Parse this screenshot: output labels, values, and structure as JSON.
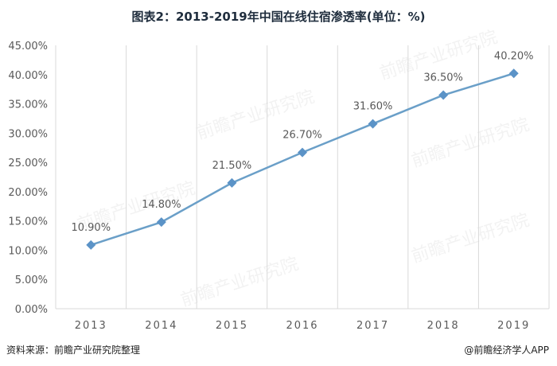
{
  "chart_title": "图表2：2013-2019年中国在线住宿渗透率(单位：%)",
  "footer": {
    "source": "资料来源：前瞻产业研究院整理",
    "brand": "@前瞻经济学人APP"
  },
  "watermark": {
    "text": "前瞻产业研究院"
  },
  "colors": {
    "line": "#6a9fc8",
    "marker": "#5b93c7",
    "grid": "#d9d9d9",
    "tick_text": "#595959",
    "label_text": "#595959"
  },
  "chart_data": {
    "type": "line",
    "title": "图表2：2013-2019年中国在线住宿渗透率(单位：%)",
    "categories": [
      "2013",
      "2014",
      "2015",
      "2016",
      "2017",
      "2018",
      "2019"
    ],
    "series": [
      {
        "values": [
          10.9,
          14.8,
          21.5,
          26.7,
          31.6,
          36.5,
          40.2
        ]
      }
    ],
    "data_labels": [
      "10.90%",
      "14.80%",
      "21.50%",
      "26.70%",
      "31.60%",
      "36.50%",
      "40.20%"
    ],
    "ylim": [
      0,
      45
    ],
    "yticks": [
      0,
      5,
      10,
      15,
      20,
      25,
      30,
      35,
      40,
      45
    ],
    "ytick_labels": [
      "0.00%",
      "5.00%",
      "10.00%",
      "15.00%",
      "20.00%",
      "25.00%",
      "30.00%",
      "35.00%",
      "40.00%",
      "45.00%"
    ],
    "grid": "vertical",
    "legend": "none",
    "marker": "diamond"
  }
}
